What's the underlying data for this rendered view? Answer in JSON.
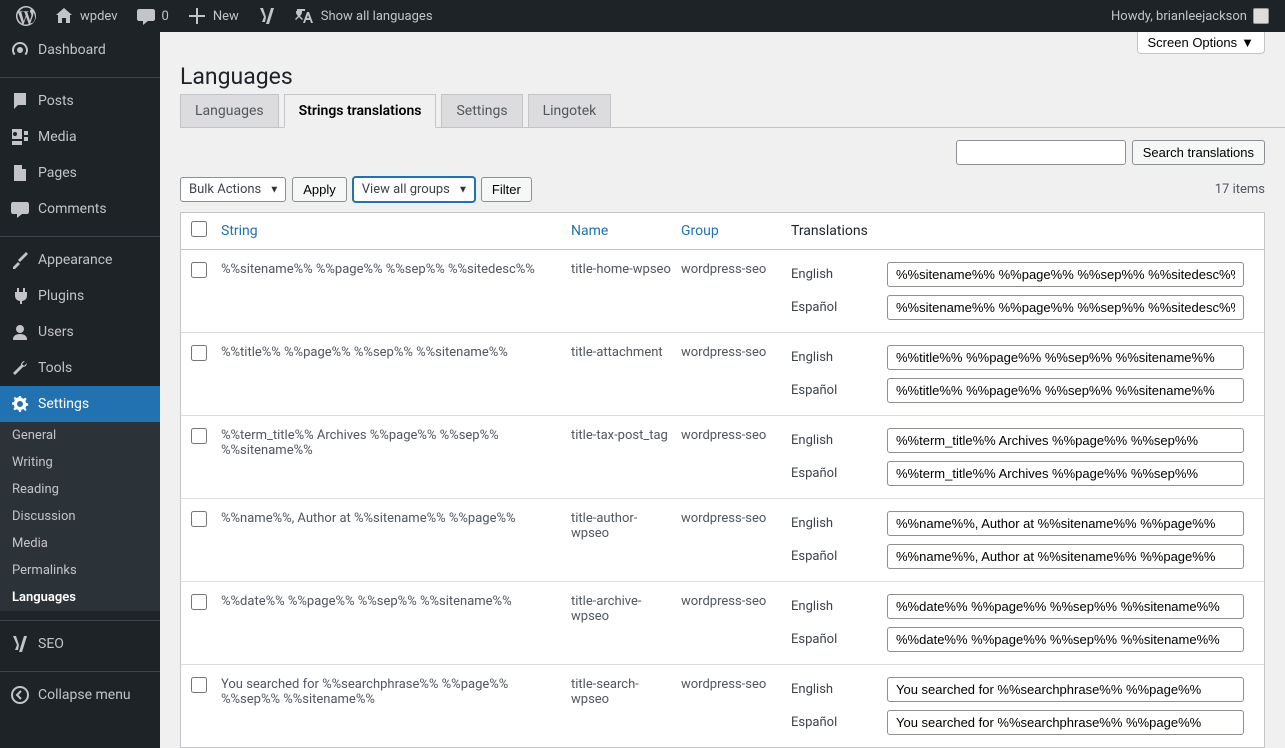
{
  "adminbar": {
    "site_name": "wpdev",
    "comments_count": "0",
    "new_label": "New",
    "show_all_langs": "Show all languages",
    "howdy": "Howdy, brianleejackson"
  },
  "sidebar": {
    "items": [
      {
        "label": "Dashboard",
        "icon": "dashboard"
      },
      {
        "label": "Posts",
        "icon": "posts"
      },
      {
        "label": "Media",
        "icon": "media"
      },
      {
        "label": "Pages",
        "icon": "pages"
      },
      {
        "label": "Comments",
        "icon": "comments"
      },
      {
        "label": "Appearance",
        "icon": "appearance"
      },
      {
        "label": "Plugins",
        "icon": "plugins"
      },
      {
        "label": "Users",
        "icon": "users"
      },
      {
        "label": "Tools",
        "icon": "tools"
      },
      {
        "label": "Settings",
        "icon": "settings"
      },
      {
        "label": "SEO",
        "icon": "seo"
      },
      {
        "label": "Collapse menu",
        "icon": "collapse"
      }
    ],
    "settings_submenu": [
      "General",
      "Writing",
      "Reading",
      "Discussion",
      "Media",
      "Permalinks",
      "Languages"
    ]
  },
  "screen_options": "Screen Options",
  "page_title": "Languages",
  "tabs": [
    "Languages",
    "Strings translations",
    "Settings",
    "Lingotek"
  ],
  "active_tab": 1,
  "search_btn": "Search translations",
  "bulk_actions": "Bulk Actions",
  "apply_btn": "Apply",
  "view_groups": "View all groups",
  "filter_btn": "Filter",
  "items_count": "17 items",
  "columns": {
    "string": "String",
    "name": "Name",
    "group": "Group",
    "translations": "Translations"
  },
  "langs": [
    "English",
    "Español"
  ],
  "rows": [
    {
      "string": "%%sitename%% %%page%% %%sep%% %%sitedesc%%",
      "name": "title-home-wpseo",
      "group": "wordpress-seo",
      "translations": [
        "%%sitename%% %%page%% %%sep%% %%sitedesc%%",
        "%%sitename%% %%page%% %%sep%% %%sitedesc%%"
      ]
    },
    {
      "string": "%%title%% %%page%% %%sep%% %%sitename%%",
      "name": "title-attachment",
      "group": "wordpress-seo",
      "translations": [
        "%%title%% %%page%% %%sep%% %%sitename%%",
        "%%title%% %%page%% %%sep%% %%sitename%%"
      ]
    },
    {
      "string": "%%term_title%% Archives %%page%% %%sep%% %%sitename%%",
      "name": "title-tax-post_tag",
      "group": "wordpress-seo",
      "translations": [
        "%%term_title%% Archives %%page%% %%sep%%",
        "%%term_title%% Archives %%page%% %%sep%%"
      ]
    },
    {
      "string": "%%name%%, Author at %%sitename%% %%page%%",
      "name": "title-author-wpseo",
      "group": "wordpress-seo",
      "translations": [
        "%%name%%, Author at %%sitename%% %%page%%",
        "%%name%%, Author at %%sitename%% %%page%%"
      ]
    },
    {
      "string": "%%date%% %%page%% %%sep%% %%sitename%%",
      "name": "title-archive-wpseo",
      "group": "wordpress-seo",
      "translations": [
        "%%date%% %%page%% %%sep%% %%sitename%%",
        "%%date%% %%page%% %%sep%% %%sitename%%"
      ]
    },
    {
      "string": "You searched for %%searchphrase%% %%page%% %%sep%% %%sitename%%",
      "name": "title-search-wpseo",
      "group": "wordpress-seo",
      "translations": [
        "You searched for %%searchphrase%% %%page%%",
        "You searched for %%searchphrase%% %%page%%"
      ]
    }
  ]
}
